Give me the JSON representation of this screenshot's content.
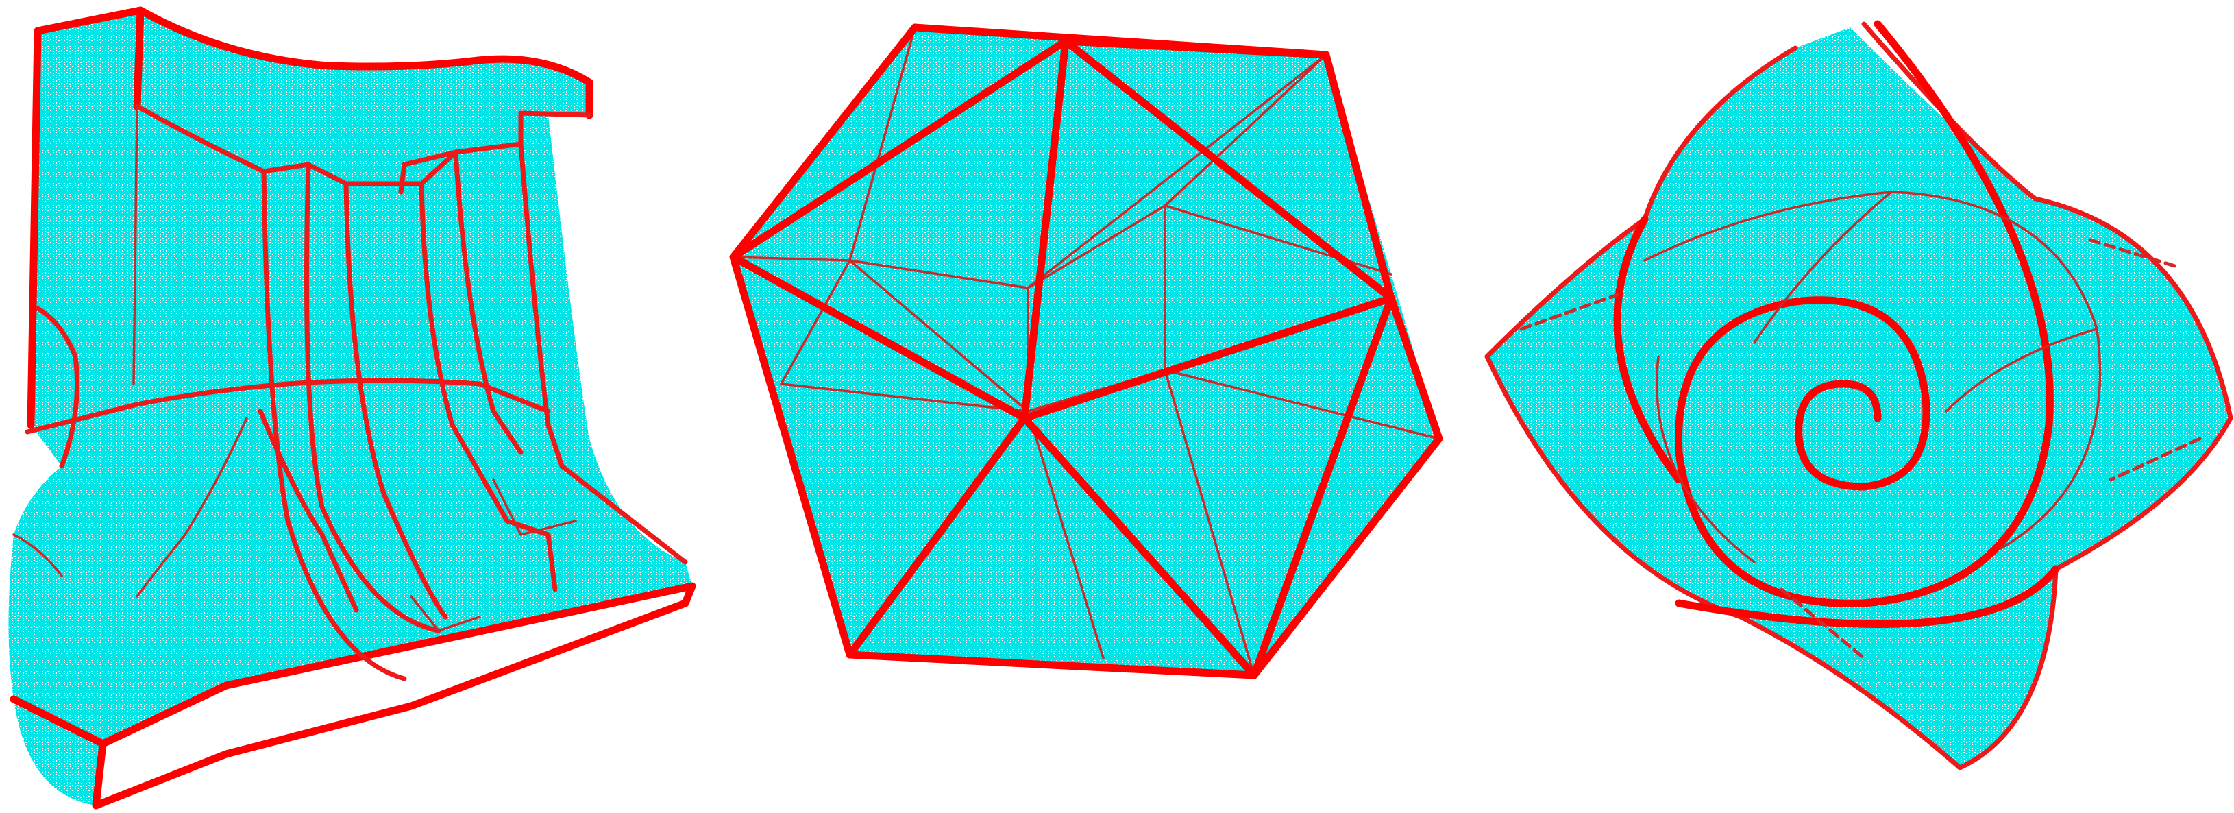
{
  "figure": {
    "background_color": "#ffffff",
    "surface_color": "#00e5e5",
    "edge_color": "#ff0000",
    "render_style": "stippled surface with red feature curves",
    "objects": [
      {
        "id": "mechanical-part",
        "shape": "curved block with vertical slots",
        "icon": "mechanical-part-icon"
      },
      {
        "id": "icosahedron",
        "shape": "icosahedron",
        "icon": "icosahedron-icon"
      },
      {
        "id": "spiral-flower",
        "shape": "four-petal spiral surface",
        "icon": "spiral-flower-icon"
      }
    ]
  }
}
